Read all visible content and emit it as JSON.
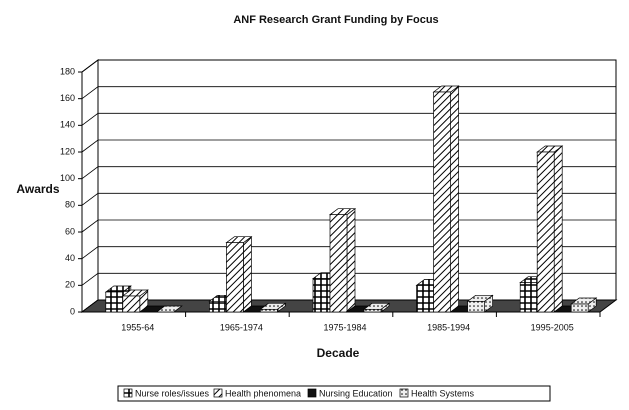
{
  "chart_data": {
    "type": "bar3d",
    "title": "ANF Research Grant Funding by Focus",
    "x_label": "Decade",
    "y_label": "Awards",
    "categories": [
      "1955-64",
      "1965-1974",
      "1975-1984",
      "1985-1994",
      "1995-2005"
    ],
    "series": [
      {
        "name": "Nurse roles/issues",
        "color": "#ffffff",
        "values": [
          15,
          8,
          25,
          20,
          22
        ]
      },
      {
        "name": "Health phenomena",
        "color": "#ffffff",
        "values": [
          12,
          52,
          73,
          165,
          120
        ]
      },
      {
        "name": "Nursing Education",
        "color": "#111111",
        "values": [
          0,
          0,
          0,
          0,
          0
        ]
      },
      {
        "name": "Health Systems",
        "color": "#dddddd",
        "values": [
          0,
          2,
          2,
          8,
          6
        ]
      }
    ],
    "ylim": [
      0,
      180
    ],
    "yticks": [
      0,
      20,
      40,
      60,
      80,
      100,
      120,
      140,
      160,
      180
    ],
    "grid": true
  }
}
